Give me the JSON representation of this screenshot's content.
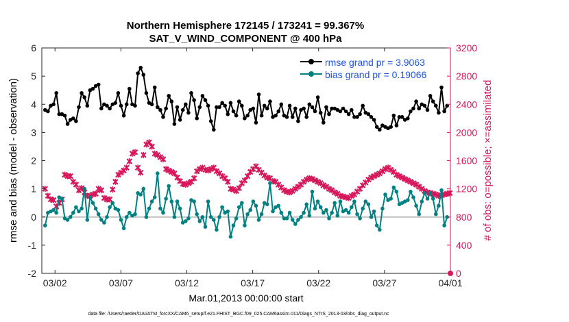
{
  "title_line1": "Northern Hemisphere 172145 / 173241 = 99.367%",
  "title_line2": "SAT_V_WIND_COMPONENT @ 400 hPa",
  "xlabel": "Mar.01,2013 00:00:00 start",
  "ylabel_left": "rmse and bias (model - observation)",
  "ylabel_right": "# of obs: o=possible; ×=assimilated",
  "footer": "data file: /Users/raeder/DAI/ATM_forcXX/CAM6_setup/f.e21.FHIST_BGC.f09_025.CAM6assim.011/Diags_NTrS_2013-03/obs_diag_output.nc",
  "legend": {
    "rmse": "rmse grand pr = 3.9063",
    "bias": "bias grand pr = 0.19066"
  },
  "colors": {
    "rmse": "#000000",
    "bias": "#008080",
    "obs": "#d6175a",
    "zero_line": "#c0c0c0",
    "legend_text": "#1f52e0",
    "right_axis": "#d6175a"
  },
  "chart_data": {
    "type": "line",
    "x_unit": "days since Mar.01,2013 00:00:00",
    "xlim": [
      0,
      31
    ],
    "xticks": [
      1,
      6,
      11,
      16,
      21,
      26,
      31
    ],
    "xtick_labels": [
      "03/02",
      "03/07",
      "03/12",
      "03/17",
      "03/22",
      "03/27",
      "04/01"
    ],
    "ylim_left": [
      -2,
      6
    ],
    "yticks_left": [
      -2,
      -1,
      0,
      1,
      2,
      3,
      4,
      5,
      6
    ],
    "ylim_right": [
      0,
      3200
    ],
    "yticks_right": [
      0,
      400,
      800,
      1200,
      1600,
      2000,
      2400,
      2800,
      3200
    ],
    "series": [
      {
        "name": "rmse grand pr = 3.9063",
        "axis": "left",
        "values": [
          3.8,
          3.75,
          3.95,
          4.0,
          4.4,
          3.65,
          3.65,
          3.6,
          3.3,
          3.45,
          3.5,
          3.4,
          3.9,
          4.4,
          4.25,
          3.95,
          4.5,
          4.55,
          4.65,
          4.7,
          3.85,
          4.0,
          3.95,
          3.85,
          4.0,
          4.05,
          4.4,
          3.95,
          3.6,
          4.0,
          4.55,
          4.0,
          3.95,
          5.1,
          5.3,
          5.05,
          4.4,
          4.05,
          4.0,
          4.6,
          3.9,
          3.8,
          3.55,
          3.85,
          4.3,
          4.1,
          3.3,
          3.9,
          3.45,
          3.8,
          4.0,
          3.7,
          4.4,
          4.15,
          3.5,
          3.9,
          4.3,
          4.15,
          3.95,
          3.4,
          3.1,
          3.9,
          3.9,
          4.05,
          3.95,
          3.65,
          4.05,
          3.75,
          3.6,
          4.1,
          3.95,
          3.5,
          3.6,
          3.8,
          3.85,
          3.35,
          4.35,
          3.6,
          3.95,
          3.85,
          4.1,
          3.55,
          3.6,
          3.75,
          4.0,
          3.6,
          3.55,
          3.95,
          3.55,
          3.85,
          3.4,
          3.8,
          3.85,
          3.55,
          4.0,
          3.9,
          3.75,
          4.25,
          3.7,
          3.35,
          3.9,
          3.65,
          3.85,
          3.85,
          3.8,
          3.75,
          3.85,
          3.75,
          3.65,
          3.8,
          3.55,
          3.55,
          3.65,
          3.95,
          3.7,
          3.65,
          3.55,
          3.45,
          3.2,
          3.1,
          3.25,
          3.2,
          3.15,
          3.2,
          3.6,
          3.25,
          3.55,
          3.55,
          3.45,
          3.5,
          3.75,
          3.85,
          4.1,
          3.85,
          4.0,
          3.95,
          3.8,
          4.3,
          4.1,
          3.95,
          3.7,
          4.6,
          3.75,
          3.95
        ]
      },
      {
        "name": "bias grand pr = 0.19066",
        "axis": "left",
        "values": [
          -0.3,
          0.15,
          0.2,
          0.25,
          0.15,
          0.7,
          0.65,
          -0.05,
          -0.1,
          0.0,
          0.15,
          0.35,
          0.2,
          0.3,
          1.0,
          -0.1,
          0.7,
          0.5,
          0.3,
          0.1,
          -0.1,
          -0.2,
          0.0,
          0.35,
          0.5,
          0.3,
          0.25,
          -0.1,
          -0.4,
          0.0,
          0.15,
          0.05,
          0.1,
          0.85,
          0.8,
          1.0,
          0.0,
          0.3,
          0.55,
          0.7,
          1.55,
          0.3,
          0.15,
          0.65,
          1.1,
          0.55,
          0.0,
          0.55,
          0.3,
          -0.2,
          -0.15,
          -0.05,
          0.6,
          0.55,
          0.1,
          -0.15,
          0.0,
          -0.35,
          0.55,
          0.0,
          -0.1,
          -0.45,
          0.0,
          0.35,
          0.15,
          0.2,
          -0.7,
          -0.3,
          -0.05,
          0.35,
          0.5,
          -0.3,
          0.1,
          0.25,
          0.55,
          0.4,
          -0.1,
          0.1,
          0.5,
          0.45,
          1.2,
          0.2,
          0.35,
          0.4,
          0.15,
          -0.05,
          -0.05,
          0.15,
          -0.1,
          -0.25,
          -0.1,
          0.0,
          0.15,
          0.45,
          0.05,
          0.9,
          0.3,
          0.55,
          0.35,
          0.15,
          0.25,
          -0.05,
          0.15,
          0.5,
          0.05,
          0.55,
          0.2,
          0.25,
          0.15,
          0.35,
          0.55,
          0.1,
          -0.05,
          0.3,
          0.55,
          0.45,
          0.0,
          0.2,
          -0.3,
          -0.45,
          0.3,
          0.8,
          0.6,
          0.65,
          1.05,
          0.9,
          0.45,
          0.5,
          0.55,
          0.6,
          0.9,
          0.7,
          0.4,
          0.1,
          0.55,
          0.85,
          0.65,
          0.85,
          0.65,
          0.1,
          0.4,
          0.95,
          -0.3,
          0.0
        ]
      },
      {
        "name": "",
        "axis": "right",
        "marker": "x",
        "values": [
          1200,
          1100,
          1050,
          1040,
          950,
          1000,
          1050,
          1400,
          1380,
          1380,
          1300,
          1260,
          1180,
          1210,
          1150,
          1100,
          1100,
          1120,
          1130,
          1200,
          1180,
          1070,
          1050,
          1050,
          1190,
          1300,
          1400,
          1430,
          1460,
          1500,
          1590,
          1700,
          1720,
          1500,
          1430,
          1680,
          1830,
          1860,
          1800,
          1700,
          1680,
          1650,
          1620,
          1480,
          1460,
          1440,
          1420,
          1360,
          1310,
          1270,
          1260,
          1280,
          1300,
          1350,
          1450,
          1480,
          1500,
          1470,
          1460,
          1480,
          1500,
          1450,
          1420,
          1380,
          1350,
          1300,
          1200,
          1190,
          1170,
          1210,
          1280,
          1320,
          1380,
          1440,
          1480,
          1520,
          1470,
          1430,
          1390,
          1360,
          1350,
          1310,
          1300,
          1260,
          1220,
          1180,
          1160,
          1150,
          1170,
          1200,
          1230,
          1260,
          1300,
          1330,
          1350,
          1340,
          1320,
          1300,
          1280,
          1250,
          1230,
          1200,
          1180,
          1150,
          1130,
          1100,
          1090,
          1080,
          1070,
          1100,
          1120,
          1160,
          1200,
          1250,
          1290,
          1330,
          1360,
          1380,
          1400,
          1420,
          1450,
          1480,
          1500,
          1470,
          1440,
          1400,
          1380,
          1360,
          1340,
          1320,
          1300,
          1280,
          1260,
          1230,
          1200,
          1170,
          1150,
          1140,
          1130,
          1120,
          1100,
          1110,
          1120,
          1130,
          1140
        ]
      }
    ],
    "legend_position": "top-right",
    "grid": false,
    "bias_zero_line": true
  }
}
